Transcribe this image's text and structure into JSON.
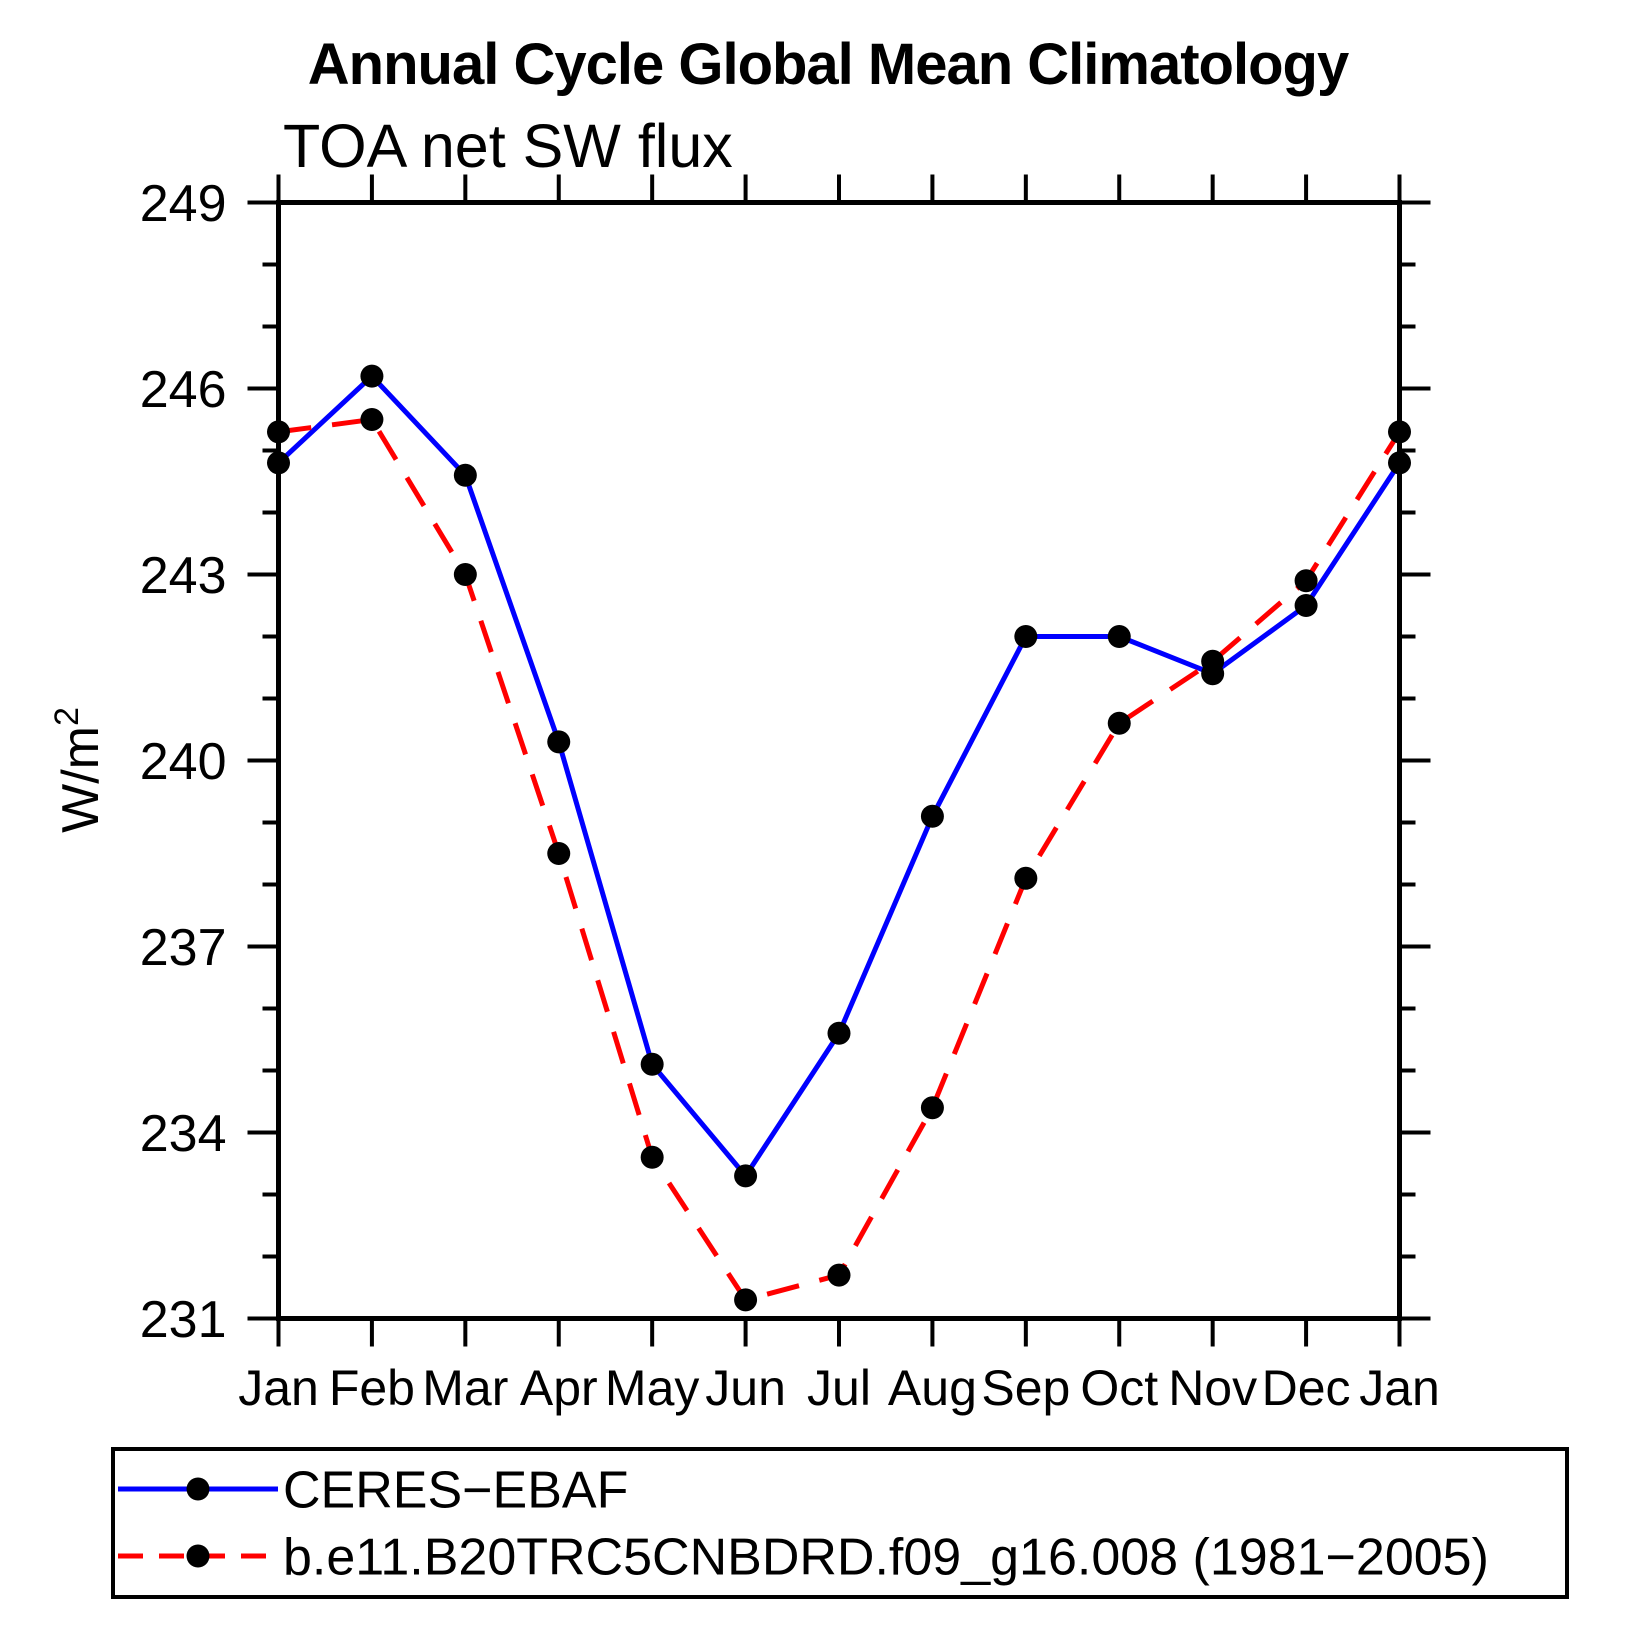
{
  "title": "Annual Cycle Global Mean Climatology",
  "subtitle": "TOA net SW flux",
  "ylabel": {
    "base": "W/m",
    "exponent": "2"
  },
  "legend": {
    "entries": [
      {
        "label": "CERES−EBAF",
        "line_color": "#0000ff",
        "line_style": "solid",
        "marker": "filled-circle",
        "marker_color": "#000000"
      },
      {
        "label": "b.e11.B20TRC5CNBDRD.f09_g16.008 (1981−2005)",
        "line_color": "#ff0000",
        "line_style": "dashed",
        "marker": "filled-circle",
        "marker_color": "#000000"
      }
    ]
  },
  "chart_data": {
    "type": "line",
    "x": [
      "Jan",
      "Feb",
      "Mar",
      "Apr",
      "May",
      "Jun",
      "Jul",
      "Aug",
      "Sep",
      "Oct",
      "Nov",
      "Dec",
      "Jan"
    ],
    "series": [
      {
        "name": "CERES−EBAF",
        "color": "#0000ff",
        "line_style": "solid",
        "marker": "filled-circle",
        "marker_color": "#000000",
        "values": [
          244.8,
          246.2,
          244.6,
          240.3,
          235.1,
          233.3,
          235.6,
          239.1,
          242.0,
          242.0,
          241.4,
          242.5,
          244.8
        ]
      },
      {
        "name": "b.e11.B20TRC5CNBDRD.f09_g16.008 (1981−2005)",
        "color": "#ff0000",
        "line_style": "dashed",
        "marker": "filled-circle",
        "marker_color": "#000000",
        "values": [
          245.3,
          245.5,
          243.0,
          238.5,
          233.6,
          231.3,
          231.7,
          234.4,
          238.1,
          240.6,
          241.6,
          242.9,
          245.3
        ]
      }
    ],
    "title": "Annual Cycle Global Mean Climatology",
    "subtitle": "TOA net SW flux",
    "xlabel": "",
    "ylabel": "W/m²",
    "ylim": [
      231,
      249
    ],
    "yticks": [
      231,
      234,
      237,
      240,
      243,
      246,
      249
    ],
    "yminor_step": 1,
    "grid": false,
    "legend_position": "bottom",
    "tick_direction": "out"
  }
}
